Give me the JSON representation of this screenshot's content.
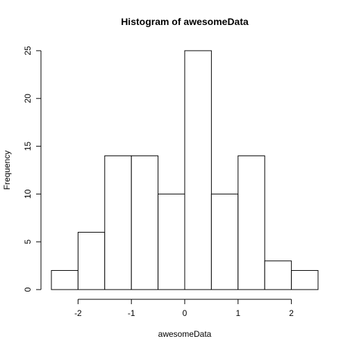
{
  "chart_data": {
    "type": "bar",
    "title": "Histogram of awesomeData",
    "xlabel": "awesomeData",
    "ylabel": "Frequency",
    "bins": [
      {
        "x0": -2.5,
        "x1": -2.0,
        "count": 2
      },
      {
        "x0": -2.0,
        "x1": -1.5,
        "count": 6
      },
      {
        "x0": -1.5,
        "x1": -1.0,
        "count": 14
      },
      {
        "x0": -1.0,
        "x1": -0.5,
        "count": 14
      },
      {
        "x0": -0.5,
        "x1": 0.0,
        "count": 10
      },
      {
        "x0": 0.0,
        "x1": 0.5,
        "count": 25
      },
      {
        "x0": 0.5,
        "x1": 1.0,
        "count": 10
      },
      {
        "x0": 1.0,
        "x1": 1.5,
        "count": 14
      },
      {
        "x0": 1.5,
        "x1": 2.0,
        "count": 3
      },
      {
        "x0": 2.0,
        "x1": 2.5,
        "count": 2
      }
    ],
    "xlim": [
      -2.5,
      2.5
    ],
    "ylim": [
      0,
      25
    ],
    "xticks": [
      -2,
      -1,
      0,
      1,
      2
    ],
    "yticks": [
      0,
      5,
      10,
      15,
      20,
      25
    ],
    "grid": false,
    "legend": "none"
  }
}
